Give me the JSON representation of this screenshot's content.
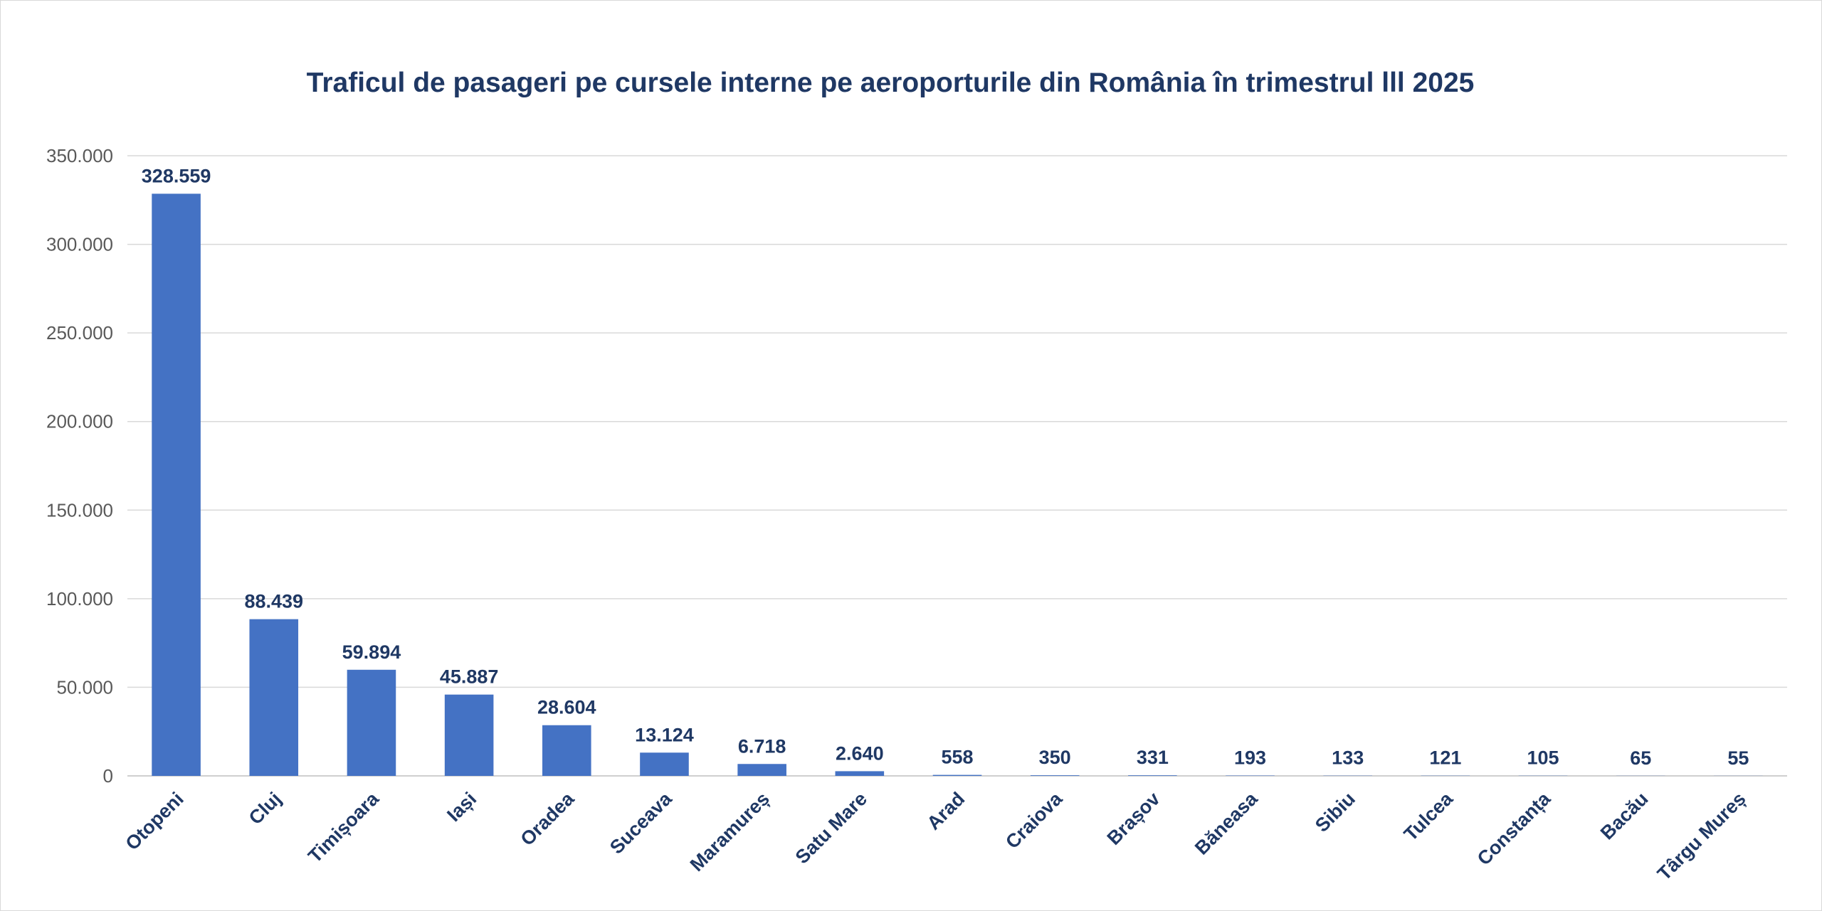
{
  "chart_data": {
    "type": "bar",
    "title": "Traficul de pasageri pe cursele interne pe aeroporturile din România în trimestrul lll 2025",
    "xlabel": "",
    "ylabel": "",
    "categories": [
      "Otopeni",
      "Cluj",
      "Timișoara",
      "Iași",
      "Oradea",
      "Suceava",
      "Maramureș",
      "Satu Mare",
      "Arad",
      "Craiova",
      "Brașov",
      "Băneasa",
      "Sibiu",
      "Tulcea",
      "Constanța",
      "Bacău",
      "Târgu Mureș"
    ],
    "values": [
      328559,
      88439,
      59894,
      45887,
      28604,
      13124,
      6718,
      2640,
      558,
      350,
      331,
      193,
      133,
      121,
      105,
      65,
      55
    ],
    "data_labels": [
      "328.559",
      "88.439",
      "59.894",
      "45.887",
      "28.604",
      "13.124",
      "6.718",
      "2.640",
      "558",
      "350",
      "331",
      "193",
      "133",
      "121",
      "105",
      "65",
      "55"
    ],
    "ylim": [
      0,
      350000
    ],
    "yticks": [
      0,
      50000,
      100000,
      150000,
      200000,
      250000,
      300000,
      350000
    ],
    "ytick_labels": [
      "0",
      "50.000",
      "100.000",
      "150.000",
      "200.000",
      "250.000",
      "300.000",
      "350.000"
    ],
    "grid": true,
    "legend": "none",
    "bar_color": "#4472c4"
  }
}
